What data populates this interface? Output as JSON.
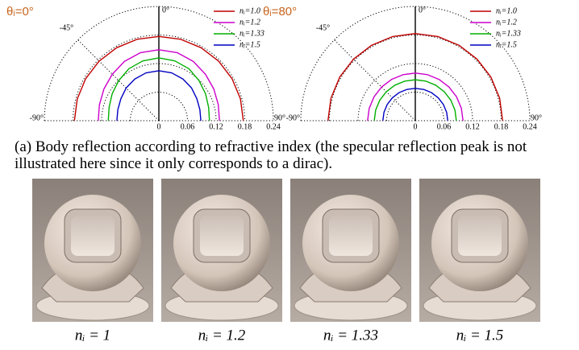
{
  "chart_data": [
    {
      "type": "polar",
      "title": "θᵢ=0°",
      "title_color": "#c8641e",
      "x": [
        -90,
        -75,
        -60,
        -45,
        -30,
        -15,
        0,
        15,
        30,
        45,
        60,
        75,
        90
      ],
      "xticks": [
        {
          "value": -90,
          "label": "-90°"
        },
        {
          "value": -45,
          "label": "-45°"
        },
        {
          "value": 0,
          "label": "0°"
        },
        {
          "value": 90,
          "label": "90°"
        }
      ],
      "rlim": [
        0,
        0.24
      ],
      "rticks": [
        0,
        0.06,
        0.12,
        0.18,
        0.24
      ],
      "grid": true,
      "series": [
        {
          "name": "nᵢ=1.0",
          "color": "#c00000",
          "values": [
            0.177,
            0.177,
            0.177,
            0.177,
            0.177,
            0.177,
            0.177,
            0.177,
            0.177,
            0.177,
            0.177,
            0.177,
            0.177
          ]
        },
        {
          "name": "nᵢ=1.2",
          "color": "#cc00cc",
          "values": [
            0.127,
            0.129,
            0.133,
            0.138,
            0.144,
            0.148,
            0.149,
            0.148,
            0.144,
            0.138,
            0.133,
            0.129,
            0.127
          ]
        },
        {
          "name": "nᵢ=1.33",
          "color": "#00b000",
          "values": [
            0.106,
            0.108,
            0.113,
            0.119,
            0.126,
            0.13,
            0.132,
            0.13,
            0.126,
            0.119,
            0.113,
            0.108,
            0.106
          ]
        },
        {
          "name": "nᵢ=1.5",
          "color": "#0000c0",
          "values": [
            0.088,
            0.089,
            0.092,
            0.097,
            0.101,
            0.104,
            0.105,
            0.104,
            0.101,
            0.097,
            0.092,
            0.089,
            0.088
          ]
        }
      ]
    },
    {
      "type": "polar",
      "title": "θᵢ=80°",
      "title_color": "#c8641e",
      "x": [
        -90,
        -75,
        -60,
        -45,
        -30,
        -15,
        0,
        15,
        30,
        45,
        60,
        75,
        90
      ],
      "xticks": [
        {
          "value": -90,
          "label": "-90°"
        },
        {
          "value": -45,
          "label": "-45°"
        },
        {
          "value": 0,
          "label": "0°"
        },
        {
          "value": 90,
          "label": "90°"
        }
      ],
      "rlim": [
        0,
        0.24
      ],
      "rticks": [
        0,
        0.06,
        0.12,
        0.18,
        0.24
      ],
      "grid": true,
      "series": [
        {
          "name": "nᵢ=1.0",
          "color": "#c00000",
          "values": [
            0.183,
            0.183,
            0.183,
            0.183,
            0.183,
            0.183,
            0.183,
            0.183,
            0.183,
            0.183,
            0.183,
            0.183,
            0.183
          ]
        },
        {
          "name": "nᵢ=1.2",
          "color": "#cc00cc",
          "values": [
            0.1,
            0.1,
            0.1,
            0.1,
            0.1,
            0.1,
            0.1,
            0.1,
            0.1,
            0.1,
            0.1,
            0.1,
            0.1
          ]
        },
        {
          "name": "nᵢ=1.33",
          "color": "#00b000",
          "values": [
            0.086,
            0.086,
            0.086,
            0.086,
            0.086,
            0.086,
            0.086,
            0.086,
            0.086,
            0.086,
            0.086,
            0.086,
            0.086
          ]
        },
        {
          "name": "nᵢ=1.5",
          "color": "#0000c0",
          "values": [
            0.068,
            0.068,
            0.068,
            0.068,
            0.068,
            0.068,
            0.068,
            0.068,
            0.068,
            0.068,
            0.068,
            0.068,
            0.068
          ]
        }
      ]
    }
  ],
  "caption": "(a) Body reflection according to refractive index (the specular reflection peak is not illustrated here since it only corresponds to a dirac).",
  "renders": [
    {
      "label": "nᵢ = 1"
    },
    {
      "label": "nᵢ = 1.2"
    },
    {
      "label": "nᵢ = 1.33"
    },
    {
      "label": "nᵢ = 1.5"
    }
  ]
}
